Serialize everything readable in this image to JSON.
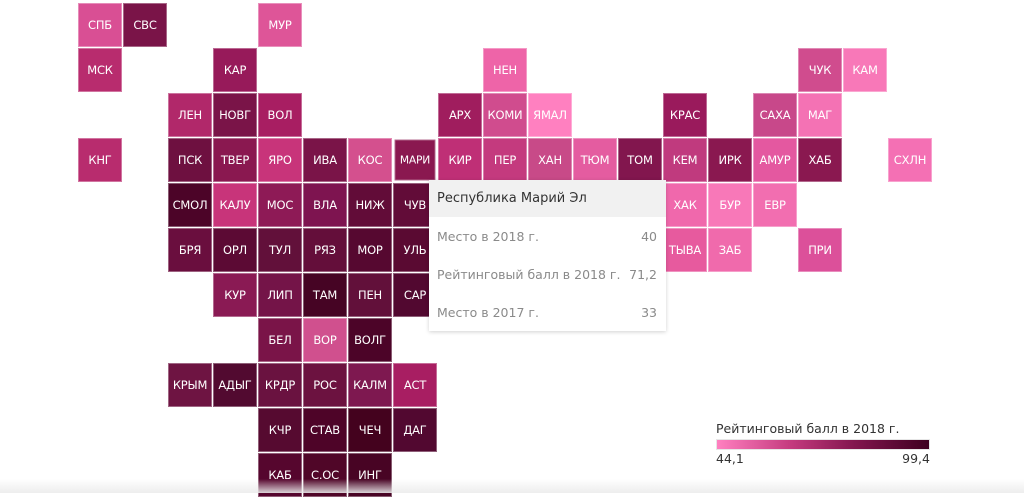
{
  "map": {
    "tiles": [
      {
        "code": "СПБ",
        "col": 0,
        "row": 0,
        "color": "#d94f94"
      },
      {
        "code": "СВС",
        "col": 1,
        "row": 0,
        "color": "#7a1448"
      },
      {
        "code": "МУР",
        "col": 4,
        "row": 0,
        "color": "#de5598"
      },
      {
        "code": "МСК",
        "col": 0,
        "row": 1,
        "color": "#b82c6e"
      },
      {
        "code": "КАР",
        "col": 3,
        "row": 1,
        "color": "#971a5a"
      },
      {
        "code": "НЕН",
        "col": 9,
        "row": 1,
        "color": "#ee64a8"
      },
      {
        "code": "ЧУК",
        "col": 16,
        "row": 1,
        "color": "#d04c8e"
      },
      {
        "code": "КАМ",
        "col": 17,
        "row": 1,
        "color": "#f878b8"
      },
      {
        "code": "ЛЕН",
        "col": 2,
        "row": 2,
        "color": "#b1286a"
      },
      {
        "code": "НОВГ",
        "col": 3,
        "row": 2,
        "color": "#7a1448"
      },
      {
        "code": "ВОЛ",
        "col": 4,
        "row": 2,
        "color": "#a81e62"
      },
      {
        "code": "АРХ",
        "col": 8,
        "row": 2,
        "color": "#a01d5e"
      },
      {
        "code": "КОМИ",
        "col": 9,
        "row": 2,
        "color": "#d04c8e"
      },
      {
        "code": "ЯМАЛ",
        "col": 10,
        "row": 2,
        "color": "#ff80c0"
      },
      {
        "code": "КРАС",
        "col": 13,
        "row": 2,
        "color": "#9a1a5c"
      },
      {
        "code": "САХА",
        "col": 15,
        "row": 2,
        "color": "#c8488a"
      },
      {
        "code": "МАГ",
        "col": 16,
        "row": 2,
        "color": "#f472b4"
      },
      {
        "code": "КНГ",
        "col": 0,
        "row": 3,
        "color": "#b82c6e"
      },
      {
        "code": "ПСК",
        "col": 2,
        "row": 3,
        "color": "#6e1040"
      },
      {
        "code": "ТВЕР",
        "col": 3,
        "row": 3,
        "color": "#8a1850"
      },
      {
        "code": "ЯРО",
        "col": 4,
        "row": 3,
        "color": "#c8347a"
      },
      {
        "code": "ИВА",
        "col": 5,
        "row": 3,
        "color": "#7a1448"
      },
      {
        "code": "КОС",
        "col": 6,
        "row": 3,
        "color": "#d4508e"
      },
      {
        "code": "МАРИ",
        "col": 7,
        "row": 3,
        "color": "#8a1850",
        "hovered": true
      },
      {
        "code": "КИР",
        "col": 8,
        "row": 3,
        "color": "#bf2f76"
      },
      {
        "code": "ПЕР",
        "col": 9,
        "row": 3,
        "color": "#c43a7e"
      },
      {
        "code": "ХАН",
        "col": 10,
        "row": 3,
        "color": "#c84a88"
      },
      {
        "code": "ТЮМ",
        "col": 11,
        "row": 3,
        "color": "#e45ca0"
      },
      {
        "code": "ТОМ",
        "col": 12,
        "row": 3,
        "color": "#82164e"
      },
      {
        "code": "КЕМ",
        "col": 13,
        "row": 3,
        "color": "#c03a7e"
      },
      {
        "code": "ИРК",
        "col": 14,
        "row": 3,
        "color": "#8a1850"
      },
      {
        "code": "АМУР",
        "col": 15,
        "row": 3,
        "color": "#e458a0"
      },
      {
        "code": "ХАБ",
        "col": 16,
        "row": 3,
        "color": "#8a1850"
      },
      {
        "code": "СХЛН",
        "col": 18,
        "row": 3,
        "color": "#f470b4"
      },
      {
        "code": "СМОЛ",
        "col": 2,
        "row": 4,
        "color": "#4c0428"
      },
      {
        "code": "КАЛУ",
        "col": 3,
        "row": 4,
        "color": "#c8347a"
      },
      {
        "code": "МОС",
        "col": 4,
        "row": 4,
        "color": "#8e1a56"
      },
      {
        "code": "ВЛА",
        "col": 5,
        "row": 4,
        "color": "#7e1450"
      },
      {
        "code": "НИЖ",
        "col": 6,
        "row": 4,
        "color": "#620c38"
      },
      {
        "code": "ЧУВ",
        "col": 7,
        "row": 4,
        "color": "#620c38"
      },
      {
        "code": "ХАК",
        "col": 13,
        "row": 4,
        "color": "#f068ac"
      },
      {
        "code": "БУР",
        "col": 14,
        "row": 4,
        "color": "#f878b8"
      },
      {
        "code": "ЕВР",
        "col": 15,
        "row": 4,
        "color": "#f26eb0"
      },
      {
        "code": "БРЯ",
        "col": 2,
        "row": 5,
        "color": "#6a0e3e"
      },
      {
        "code": "ОРЛ",
        "col": 3,
        "row": 5,
        "color": "#5c0a34"
      },
      {
        "code": "ТУЛ",
        "col": 4,
        "row": 5,
        "color": "#62103a"
      },
      {
        "code": "РЯЗ",
        "col": 5,
        "row": 5,
        "color": "#640e3a"
      },
      {
        "code": "МОР",
        "col": 6,
        "row": 5,
        "color": "#560830"
      },
      {
        "code": "УЛЬ",
        "col": 7,
        "row": 5,
        "color": "#5a0a32"
      },
      {
        "code": "ТЫВА",
        "col": 13,
        "row": 5,
        "color": "#e75a9e"
      },
      {
        "code": "ЗАБ",
        "col": 14,
        "row": 5,
        "color": "#f06aac"
      },
      {
        "code": "ПРИ",
        "col": 16,
        "row": 5,
        "color": "#dc509a"
      },
      {
        "code": "КУР",
        "col": 3,
        "row": 6,
        "color": "#8a1a54"
      },
      {
        "code": "ЛИП",
        "col": 4,
        "row": 6,
        "color": "#741448"
      },
      {
        "code": "ТАМ",
        "col": 5,
        "row": 6,
        "color": "#460424"
      },
      {
        "code": "ПЕН",
        "col": 6,
        "row": 6,
        "color": "#62103a"
      },
      {
        "code": "САР",
        "col": 7,
        "row": 6,
        "color": "#520830"
      },
      {
        "code": "БЕЛ",
        "col": 4,
        "row": 7,
        "color": "#7a1448"
      },
      {
        "code": "ВОР",
        "col": 5,
        "row": 7,
        "color": "#d0508e"
      },
      {
        "code": "ВОЛГ",
        "col": 6,
        "row": 7,
        "color": "#4c0428"
      },
      {
        "code": "КРЫМ",
        "col": 2,
        "row": 8,
        "color": "#6e1442"
      },
      {
        "code": "АДЫГ",
        "col": 3,
        "row": 8,
        "color": "#520a30"
      },
      {
        "code": "КРДР",
        "col": 4,
        "row": 8,
        "color": "#6a1240"
      },
      {
        "code": "РОС",
        "col": 5,
        "row": 8,
        "color": "#6c1240"
      },
      {
        "code": "КАЛМ",
        "col": 6,
        "row": 8,
        "color": "#7e1850"
      },
      {
        "code": "АСТ",
        "col": 7,
        "row": 8,
        "color": "#a81e62"
      },
      {
        "code": "КЧР",
        "col": 4,
        "row": 9,
        "color": "#560a30"
      },
      {
        "code": "СТАВ",
        "col": 5,
        "row": 9,
        "color": "#4e0428"
      },
      {
        "code": "ЧЕЧ",
        "col": 6,
        "row": 9,
        "color": "#44021e"
      },
      {
        "code": "ДАГ",
        "col": 7,
        "row": 9,
        "color": "#520830"
      },
      {
        "code": "КАБ",
        "col": 4,
        "row": 10,
        "color": "#56062e"
      },
      {
        "code": "С.ОС",
        "col": 5,
        "row": 10,
        "color": "#500628"
      },
      {
        "code": "ИНГ",
        "col": 6,
        "row": 10,
        "color": "#480424"
      }
    ]
  },
  "tooltip": {
    "title": "Республика Марий Эл",
    "rows": [
      {
        "label": "Место в 2018 г.",
        "value": "40"
      },
      {
        "label": "Рейтинговый балл в 2018 г.",
        "value": "71,2"
      },
      {
        "label": "Место в 2017 г.",
        "value": "33"
      }
    ]
  },
  "legend": {
    "title": "Рейтинговый балл в 2018 г.",
    "min_label": "44,1",
    "max_label": "99,4",
    "min_color": "#ff80c0",
    "max_color": "#3e0020"
  }
}
